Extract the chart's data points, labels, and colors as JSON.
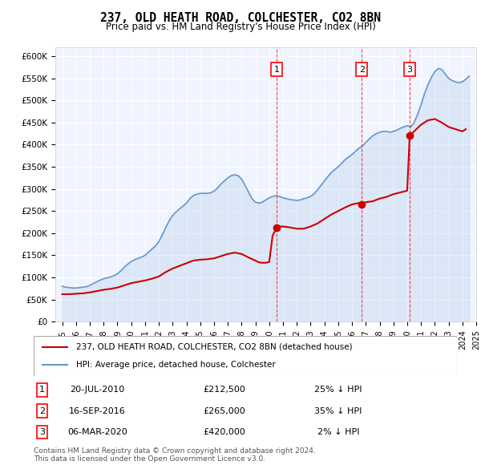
{
  "title": "237, OLD HEATH ROAD, COLCHESTER, CO2 8BN",
  "subtitle": "Price paid vs. HM Land Registry's House Price Index (HPI)",
  "ylabel_ticks": [
    "£0",
    "£50K",
    "£100K",
    "£150K",
    "£200K",
    "£250K",
    "£300K",
    "£350K",
    "£400K",
    "£450K",
    "£500K",
    "£550K",
    "£600K"
  ],
  "ytick_values": [
    0,
    50000,
    100000,
    150000,
    200000,
    250000,
    300000,
    350000,
    400000,
    450000,
    500000,
    550000,
    600000
  ],
  "ylim": [
    0,
    620000
  ],
  "background_color": "#f0f4ff",
  "plot_bg": "#f0f4ff",
  "red_line_color": "#cc0000",
  "blue_line_color": "#6699cc",
  "legend_label_red": "237, OLD HEATH ROAD, COLCHESTER, CO2 8BN (detached house)",
  "legend_label_blue": "HPI: Average price, detached house, Colchester",
  "sales": [
    {
      "num": 1,
      "date": "20-JUL-2010",
      "year": 2010.55,
      "price": 212500,
      "pct": "25% ↓ HPI"
    },
    {
      "num": 2,
      "date": "16-SEP-2016",
      "year": 2016.71,
      "price": 265000,
      "pct": "35% ↓ HPI"
    },
    {
      "num": 3,
      "date": "06-MAR-2020",
      "year": 2020.18,
      "price": 420000,
      "pct": "2% ↓ HPI"
    }
  ],
  "footnote1": "Contains HM Land Registry data © Crown copyright and database right 2024.",
  "footnote2": "This data is licensed under the Open Government Licence v3.0.",
  "hpi_data": {
    "years": [
      1995.0,
      1995.25,
      1995.5,
      1995.75,
      1996.0,
      1996.25,
      1996.5,
      1996.75,
      1997.0,
      1997.25,
      1997.5,
      1997.75,
      1998.0,
      1998.25,
      1998.5,
      1998.75,
      1999.0,
      1999.25,
      1999.5,
      1999.75,
      2000.0,
      2000.25,
      2000.5,
      2000.75,
      2001.0,
      2001.25,
      2001.5,
      2001.75,
      2002.0,
      2002.25,
      2002.5,
      2002.75,
      2003.0,
      2003.25,
      2003.5,
      2003.75,
      2004.0,
      2004.25,
      2004.5,
      2004.75,
      2005.0,
      2005.25,
      2005.5,
      2005.75,
      2006.0,
      2006.25,
      2006.5,
      2006.75,
      2007.0,
      2007.25,
      2007.5,
      2007.75,
      2008.0,
      2008.25,
      2008.5,
      2008.75,
      2009.0,
      2009.25,
      2009.5,
      2009.75,
      2010.0,
      2010.25,
      2010.5,
      2010.75,
      2011.0,
      2011.25,
      2011.5,
      2011.75,
      2012.0,
      2012.25,
      2012.5,
      2012.75,
      2013.0,
      2013.25,
      2013.5,
      2013.75,
      2014.0,
      2014.25,
      2014.5,
      2014.75,
      2015.0,
      2015.25,
      2015.5,
      2015.75,
      2016.0,
      2016.25,
      2016.5,
      2016.75,
      2017.0,
      2017.25,
      2017.5,
      2017.75,
      2018.0,
      2018.25,
      2018.5,
      2018.75,
      2019.0,
      2019.25,
      2019.5,
      2019.75,
      2020.0,
      2020.25,
      2020.5,
      2020.75,
      2021.0,
      2021.25,
      2021.5,
      2021.75,
      2022.0,
      2022.25,
      2022.5,
      2022.75,
      2023.0,
      2023.25,
      2023.5,
      2023.75,
      2024.0,
      2024.25,
      2024.5
    ],
    "values": [
      80000,
      78000,
      77000,
      76000,
      76000,
      77000,
      78000,
      79000,
      82000,
      86000,
      90000,
      94000,
      97000,
      99000,
      101000,
      104000,
      108000,
      115000,
      123000,
      130000,
      136000,
      140000,
      143000,
      146000,
      150000,
      157000,
      164000,
      171000,
      181000,
      196000,
      213000,
      228000,
      240000,
      248000,
      255000,
      261000,
      268000,
      278000,
      285000,
      288000,
      290000,
      290000,
      290000,
      291000,
      295000,
      302000,
      311000,
      318000,
      325000,
      330000,
      332000,
      330000,
      322000,
      308000,
      293000,
      278000,
      270000,
      268000,
      270000,
      275000,
      280000,
      283000,
      285000,
      283000,
      280000,
      278000,
      276000,
      275000,
      274000,
      275000,
      278000,
      280000,
      283000,
      289000,
      298000,
      308000,
      318000,
      328000,
      337000,
      344000,
      350000,
      358000,
      366000,
      372000,
      378000,
      385000,
      392000,
      397000,
      405000,
      413000,
      420000,
      425000,
      428000,
      430000,
      430000,
      428000,
      430000,
      433000,
      437000,
      440000,
      443000,
      440000,
      450000,
      468000,
      490000,
      515000,
      535000,
      552000,
      565000,
      572000,
      570000,
      560000,
      550000,
      545000,
      542000,
      540000,
      542000,
      548000,
      555000
    ]
  },
  "red_data": {
    "years": [
      1995.0,
      1995.5,
      1996.0,
      1996.5,
      1997.0,
      1997.5,
      1998.0,
      1998.5,
      1999.0,
      1999.5,
      2000.0,
      2000.5,
      2001.0,
      2001.5,
      2002.0,
      2002.5,
      2003.0,
      2003.5,
      2004.0,
      2004.5,
      2005.0,
      2005.5,
      2006.0,
      2006.5,
      2007.0,
      2007.5,
      2008.0,
      2008.5,
      2009.0,
      2009.25,
      2009.5,
      2009.75,
      2010.0,
      2010.25,
      2010.55,
      2010.75,
      2011.0,
      2011.5,
      2012.0,
      2012.5,
      2013.0,
      2013.5,
      2014.0,
      2014.5,
      2015.0,
      2015.5,
      2016.0,
      2016.5,
      2016.71,
      2017.0,
      2017.5,
      2018.0,
      2018.5,
      2019.0,
      2019.5,
      2020.0,
      2020.18,
      2020.5,
      2021.0,
      2021.5,
      2022.0,
      2022.5,
      2023.0,
      2023.5,
      2024.0,
      2024.25
    ],
    "values": [
      62000,
      62000,
      63000,
      64000,
      66000,
      69000,
      72000,
      74000,
      77000,
      82000,
      87000,
      90000,
      93000,
      97000,
      102000,
      112000,
      120000,
      126000,
      132000,
      138000,
      140000,
      141000,
      143000,
      148000,
      153000,
      156000,
      153000,
      145000,
      138000,
      134000,
      133000,
      133000,
      135000,
      195000,
      212500,
      215000,
      215000,
      213000,
      210000,
      210000,
      215000,
      222000,
      232000,
      242000,
      250000,
      258000,
      265000,
      268000,
      265000,
      270000,
      272000,
      278000,
      282000,
      288000,
      292000,
      296000,
      420000,
      430000,
      445000,
      455000,
      458000,
      450000,
      440000,
      435000,
      430000,
      435000
    ]
  }
}
